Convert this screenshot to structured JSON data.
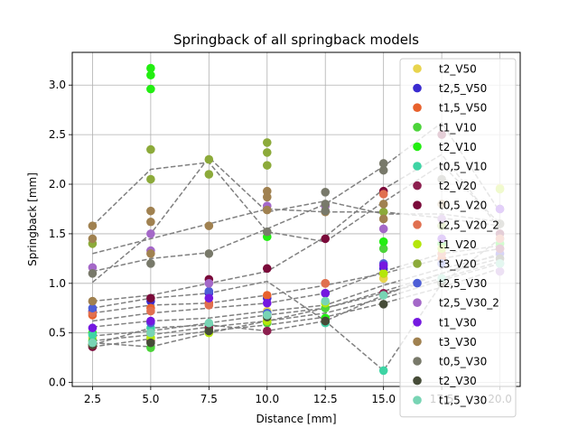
{
  "chart_data": {
    "type": "scatter",
    "title": "Springback of all springback models",
    "xlabel": "Distance [mm]",
    "ylabel": "Springback [mm]",
    "xlim": [
      1.63,
      20.87
    ],
    "ylim": [
      -0.04,
      3.33
    ],
    "xticks": [
      "2.5",
      "5.0",
      "7.5",
      "10.0",
      "12.5",
      "15.0",
      "17.5",
      "20.0"
    ],
    "xtick_values": [
      2.5,
      5.0,
      7.5,
      10.0,
      12.5,
      15.0,
      17.5,
      20.0
    ],
    "yticks": [
      "0.0",
      "0.5",
      "1.0",
      "1.5",
      "2.0",
      "2.5",
      "3.0"
    ],
    "ytick_values": [
      0.0,
      0.5,
      1.0,
      1.5,
      2.0,
      2.5,
      3.0
    ],
    "grid": true,
    "legend_position": "right",
    "trend_line_color": "#808080",
    "x": [
      2.5,
      5.0,
      7.5,
      10.0,
      12.5,
      15.0,
      17.5,
      20.0
    ],
    "series": [
      {
        "name": "t2_V50",
        "color": "#e8d44d",
        "points": [
          [
            2.5,
            0.45
          ],
          [
            5.0,
            0.5
          ],
          [
            7.5,
            0.55
          ],
          [
            10.0,
            0.72
          ],
          [
            12.5,
            0.8
          ],
          [
            15.0,
            1.05
          ],
          [
            17.5,
            1.3
          ],
          [
            20.0,
            1.96
          ]
        ]
      },
      {
        "name": "t2,5_V50",
        "color": "#3a2bd0",
        "points": [
          [
            2.5,
            0.72
          ],
          [
            5.0,
            0.82
          ],
          [
            7.5,
            0.9
          ],
          [
            10.0,
            0.85
          ],
          [
            12.5,
            0.9
          ],
          [
            15.0,
            1.15
          ],
          [
            17.5,
            1.25
          ],
          [
            20.0,
            1.3
          ]
        ]
      },
      {
        "name": "t1,5_V50",
        "color": "#e8612c",
        "points": [
          [
            2.5,
            0.68
          ],
          [
            5.0,
            0.75
          ],
          [
            7.5,
            0.8
          ],
          [
            10.0,
            0.88
          ],
          [
            12.5,
            1.0
          ],
          [
            15.0,
            1.1
          ],
          [
            17.5,
            1.25
          ],
          [
            20.0,
            1.35
          ]
        ]
      },
      {
        "name": "t1_V10",
        "color": "#4cd43a",
        "points": [
          [
            2.5,
            0.42
          ],
          [
            5.0,
            0.35
          ],
          [
            7.5,
            0.52
          ],
          [
            10.0,
            0.6
          ],
          [
            12.5,
            0.75
          ],
          [
            15.0,
            1.35
          ],
          [
            17.5,
            1.4
          ],
          [
            20.0,
            1.4
          ]
        ]
      },
      {
        "name": "t2_V10",
        "color": "#22ee11",
        "points": [
          [
            2.5,
            0.5
          ],
          [
            5.0,
            3.1
          ],
          [
            5.0,
            3.17
          ],
          [
            5.0,
            2.96
          ],
          [
            7.5,
            0.58
          ],
          [
            10.0,
            1.47
          ],
          [
            12.5,
            0.65
          ],
          [
            15.0,
            1.42
          ],
          [
            17.5,
            1.4
          ],
          [
            20.0,
            1.4
          ]
        ]
      },
      {
        "name": "t0,5_V10",
        "color": "#3ed4a4",
        "points": [
          [
            2.5,
            0.48
          ],
          [
            5.0,
            0.55
          ],
          [
            7.5,
            0.58
          ],
          [
            10.0,
            0.7
          ],
          [
            12.5,
            0.6
          ],
          [
            15.0,
            0.12
          ],
          [
            17.5,
            1.0
          ],
          [
            20.0,
            1.45
          ]
        ]
      },
      {
        "name": "t2_V20",
        "color": "#8c1f4f",
        "points": [
          [
            2.5,
            0.38
          ],
          [
            5.0,
            0.42
          ],
          [
            7.5,
            0.55
          ],
          [
            10.0,
            0.52
          ],
          [
            12.5,
            0.62
          ],
          [
            15.0,
            0.9
          ],
          [
            17.5,
            1.2
          ],
          [
            20.0,
            1.35
          ]
        ]
      },
      {
        "name": "t0,5_V20",
        "color": "#7a0a3a",
        "points": [
          [
            2.5,
            0.36
          ],
          [
            5.0,
            0.85
          ],
          [
            7.5,
            1.04
          ],
          [
            10.0,
            1.15
          ],
          [
            12.5,
            1.45
          ],
          [
            15.0,
            1.93
          ],
          [
            17.5,
            2.5
          ],
          [
            20.0,
            1.5
          ]
        ]
      },
      {
        "name": "t2,5_V20_2",
        "color": "#e07050",
        "points": [
          [
            2.5,
            0.7
          ],
          [
            5.0,
            0.72
          ],
          [
            7.5,
            0.78
          ],
          [
            10.0,
            0.62
          ],
          [
            12.5,
            1.0
          ],
          [
            15.0,
            1.9
          ],
          [
            17.5,
            1.3
          ],
          [
            20.0,
            1.45
          ]
        ]
      },
      {
        "name": "t1_V20",
        "color": "#b4e60a",
        "points": [
          [
            2.5,
            0.38
          ],
          [
            5.0,
            0.45
          ],
          [
            7.5,
            0.5
          ],
          [
            10.0,
            0.62
          ],
          [
            12.5,
            0.8
          ],
          [
            15.0,
            1.1
          ],
          [
            17.5,
            1.35
          ],
          [
            20.0,
            1.95
          ]
        ]
      },
      {
        "name": "t3_V20",
        "color": "#8caa3a",
        "points": [
          [
            2.5,
            1.4
          ],
          [
            5.0,
            2.35
          ],
          [
            5.0,
            2.05
          ],
          [
            7.5,
            2.25
          ],
          [
            7.5,
            2.1
          ],
          [
            10.0,
            2.42
          ],
          [
            10.0,
            2.32
          ],
          [
            10.0,
            2.19
          ],
          [
            12.5,
            1.78
          ],
          [
            15.0,
            1.72
          ],
          [
            17.5,
            1.58
          ],
          [
            20.0,
            1.75
          ]
        ]
      },
      {
        "name": "t2,5_V30",
        "color": "#4d5ed6",
        "points": [
          [
            2.5,
            0.75
          ],
          [
            5.0,
            0.6
          ],
          [
            7.5,
            0.92
          ],
          [
            10.0,
            0.7
          ],
          [
            12.5,
            0.9
          ],
          [
            15.0,
            1.2
          ],
          [
            17.5,
            1.2
          ],
          [
            20.0,
            1.2
          ]
        ]
      },
      {
        "name": "t2,5_V30_2",
        "color": "#a468c8",
        "points": [
          [
            2.5,
            1.16
          ],
          [
            5.0,
            1.5
          ],
          [
            5.0,
            1.33
          ],
          [
            7.5,
            1.0
          ],
          [
            10.0,
            1.78
          ],
          [
            12.5,
            1.78
          ],
          [
            15.0,
            1.55
          ],
          [
            17.5,
            1.65
          ],
          [
            20.0,
            1.12
          ]
        ]
      },
      {
        "name": "t1_V30",
        "color": "#7418e0",
        "points": [
          [
            2.5,
            0.55
          ],
          [
            5.0,
            0.62
          ],
          [
            7.5,
            0.85
          ],
          [
            10.0,
            0.8
          ],
          [
            12.5,
            0.9
          ],
          [
            15.0,
            1.18
          ],
          [
            17.5,
            1.45
          ],
          [
            20.0,
            1.75
          ]
        ]
      },
      {
        "name": "t3_V30",
        "color": "#a08150",
        "points": [
          [
            2.5,
            1.58
          ],
          [
            2.5,
            1.45
          ],
          [
            2.5,
            0.82
          ],
          [
            5.0,
            1.73
          ],
          [
            5.0,
            1.62
          ],
          [
            5.0,
            1.3
          ],
          [
            7.5,
            1.58
          ],
          [
            10.0,
            1.93
          ],
          [
            10.0,
            1.87
          ],
          [
            10.0,
            1.74
          ],
          [
            12.5,
            1.72
          ],
          [
            15.0,
            1.8
          ],
          [
            15.0,
            1.65
          ],
          [
            17.5,
            1.8
          ],
          [
            20.0,
            1.6
          ]
        ]
      },
      {
        "name": "t0,5_V30",
        "color": "#78796a",
        "points": [
          [
            2.5,
            1.1
          ],
          [
            5.0,
            1.2
          ],
          [
            7.5,
            1.3
          ],
          [
            10.0,
            1.52
          ],
          [
            12.5,
            1.92
          ],
          [
            12.5,
            1.8
          ],
          [
            12.5,
            1.73
          ],
          [
            15.0,
            2.21
          ],
          [
            15.0,
            2.14
          ],
          [
            17.5,
            2.05
          ],
          [
            20.0,
            1.6
          ]
        ]
      },
      {
        "name": "t2_V30",
        "color": "#464c38",
        "points": [
          [
            2.5,
            0.38
          ],
          [
            5.0,
            0.4
          ],
          [
            7.5,
            0.52
          ],
          [
            10.0,
            0.66
          ],
          [
            12.5,
            0.62
          ],
          [
            15.0,
            0.79
          ],
          [
            17.5,
            1.0
          ],
          [
            20.0,
            1.25
          ]
        ]
      },
      {
        "name": "t1,5_V30",
        "color": "#78d4b4",
        "points": [
          [
            2.5,
            0.4
          ],
          [
            5.0,
            0.5
          ],
          [
            7.5,
            0.6
          ],
          [
            10.0,
            0.68
          ],
          [
            12.5,
            0.82
          ],
          [
            15.0,
            0.88
          ],
          [
            17.5,
            1.05
          ],
          [
            20.0,
            1.2
          ]
        ]
      }
    ],
    "trend_lines": [
      [
        1.58,
        2.15,
        2.22,
        1.52,
        1.42,
        1.82,
        2.2,
        1.6
      ],
      [
        1.3,
        1.45,
        1.6,
        1.75,
        1.72,
        1.72,
        1.66,
        1.58
      ],
      [
        1.12,
        1.25,
        1.31,
        1.55,
        1.8,
        2.18,
        2.62,
        1.72
      ],
      [
        1.01,
        1.5,
        2.27,
        1.72,
        1.83,
        1.7,
        1.7,
        1.62
      ],
      [
        0.82,
        0.88,
        1.0,
        1.12,
        1.47,
        1.95,
        2.3,
        1.55
      ],
      [
        0.75,
        0.85,
        0.9,
        1.02,
        0.62,
        0.12,
        1.0,
        1.45
      ],
      [
        0.7,
        0.78,
        0.8,
        0.88,
        0.98,
        1.1,
        1.25,
        1.35
      ],
      [
        0.62,
        0.7,
        0.75,
        0.8,
        0.9,
        1.12,
        1.3,
        1.38
      ],
      [
        0.56,
        0.62,
        0.65,
        0.72,
        0.78,
        0.98,
        1.15,
        1.28
      ],
      [
        0.47,
        0.52,
        0.6,
        0.68,
        0.75,
        0.92,
        1.1,
        1.25
      ],
      [
        0.42,
        0.48,
        0.56,
        0.62,
        0.7,
        0.85,
        1.03,
        1.2
      ],
      [
        0.36,
        0.44,
        0.52,
        0.58,
        0.66,
        0.8,
        0.96,
        1.15
      ],
      [
        0.38,
        0.55,
        0.58,
        0.52,
        0.62,
        0.88,
        1.1,
        1.3
      ],
      [
        0.4,
        0.36,
        0.5,
        0.62,
        0.75,
        0.9,
        1.05,
        1.22
      ]
    ]
  }
}
